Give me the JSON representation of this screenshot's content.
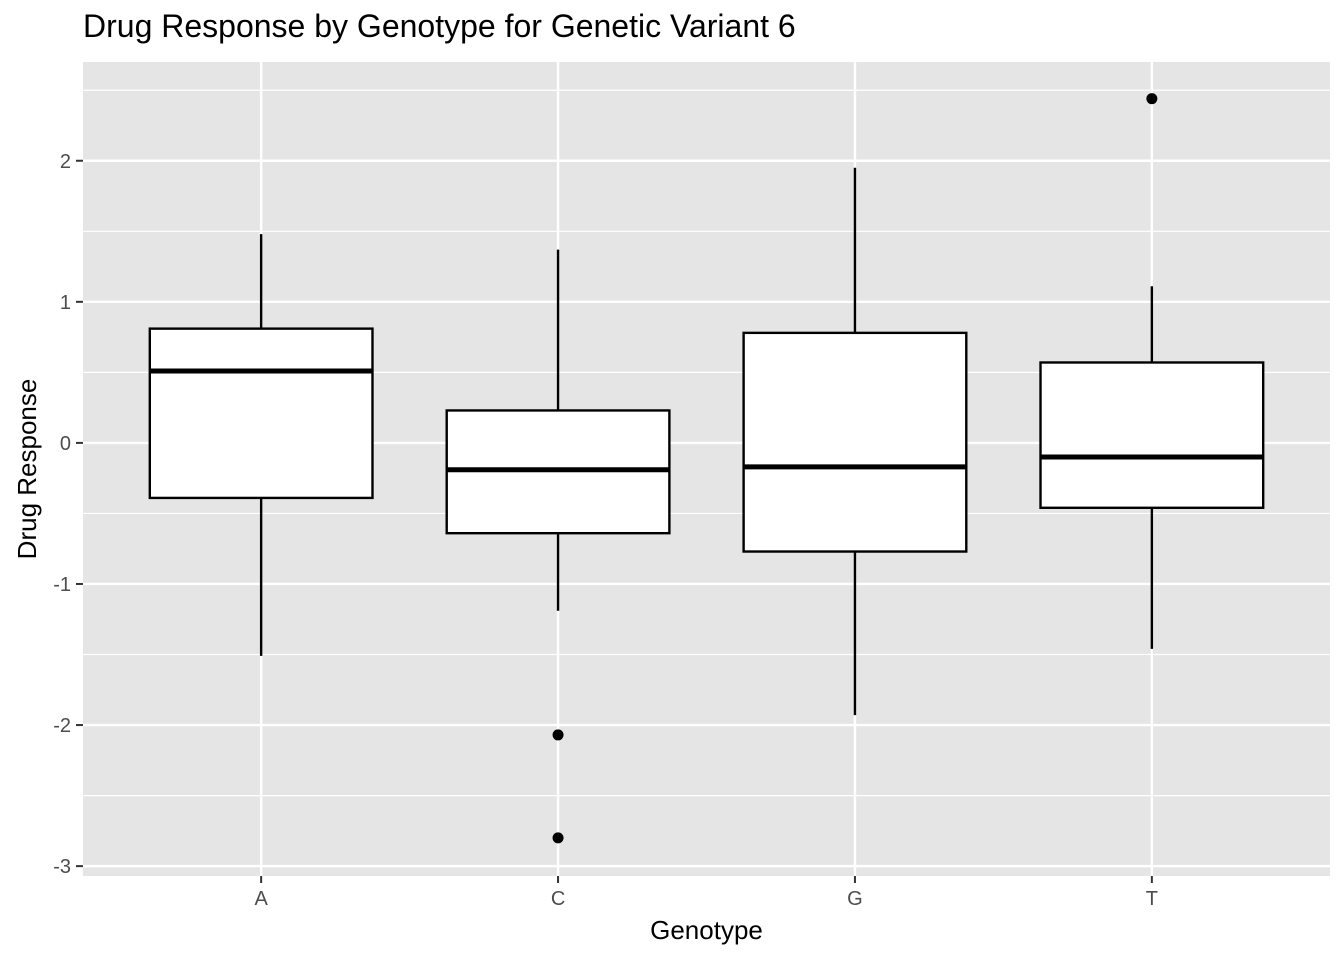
{
  "chart_data": {
    "type": "boxplot",
    "title": "Drug Response by Genotype for Genetic Variant 6",
    "xlabel": "Genotype",
    "ylabel": "Drug Response",
    "categories": [
      "A",
      "C",
      "G",
      "T"
    ],
    "ylim": [
      -3.07,
      2.7
    ],
    "yticks": [
      -3,
      -2,
      -1,
      0,
      1,
      2
    ],
    "grid": true,
    "legend": "none",
    "boxes": [
      {
        "category": "A",
        "whisker_low": -1.51,
        "q1": -0.39,
        "median": 0.51,
        "q3": 0.81,
        "whisker_high": 1.48,
        "outliers": []
      },
      {
        "category": "C",
        "whisker_low": -1.19,
        "q1": -0.64,
        "median": -0.19,
        "q3": 0.23,
        "whisker_high": 1.37,
        "outliers": [
          -2.07,
          -2.8
        ]
      },
      {
        "category": "G",
        "whisker_low": -1.93,
        "q1": -0.77,
        "median": -0.17,
        "q3": 0.78,
        "whisker_high": 1.95,
        "outliers": []
      },
      {
        "category": "T",
        "whisker_low": -1.46,
        "q1": -0.46,
        "median": -0.1,
        "q3": 0.57,
        "whisker_high": 1.11,
        "outliers": [
          2.44
        ]
      }
    ],
    "colors": {
      "panel": "#e5e5e5",
      "grid": "#ffffff",
      "box_fill": "#ffffff",
      "box_line": "#000000",
      "tick_text": "#4d4d4d"
    }
  }
}
